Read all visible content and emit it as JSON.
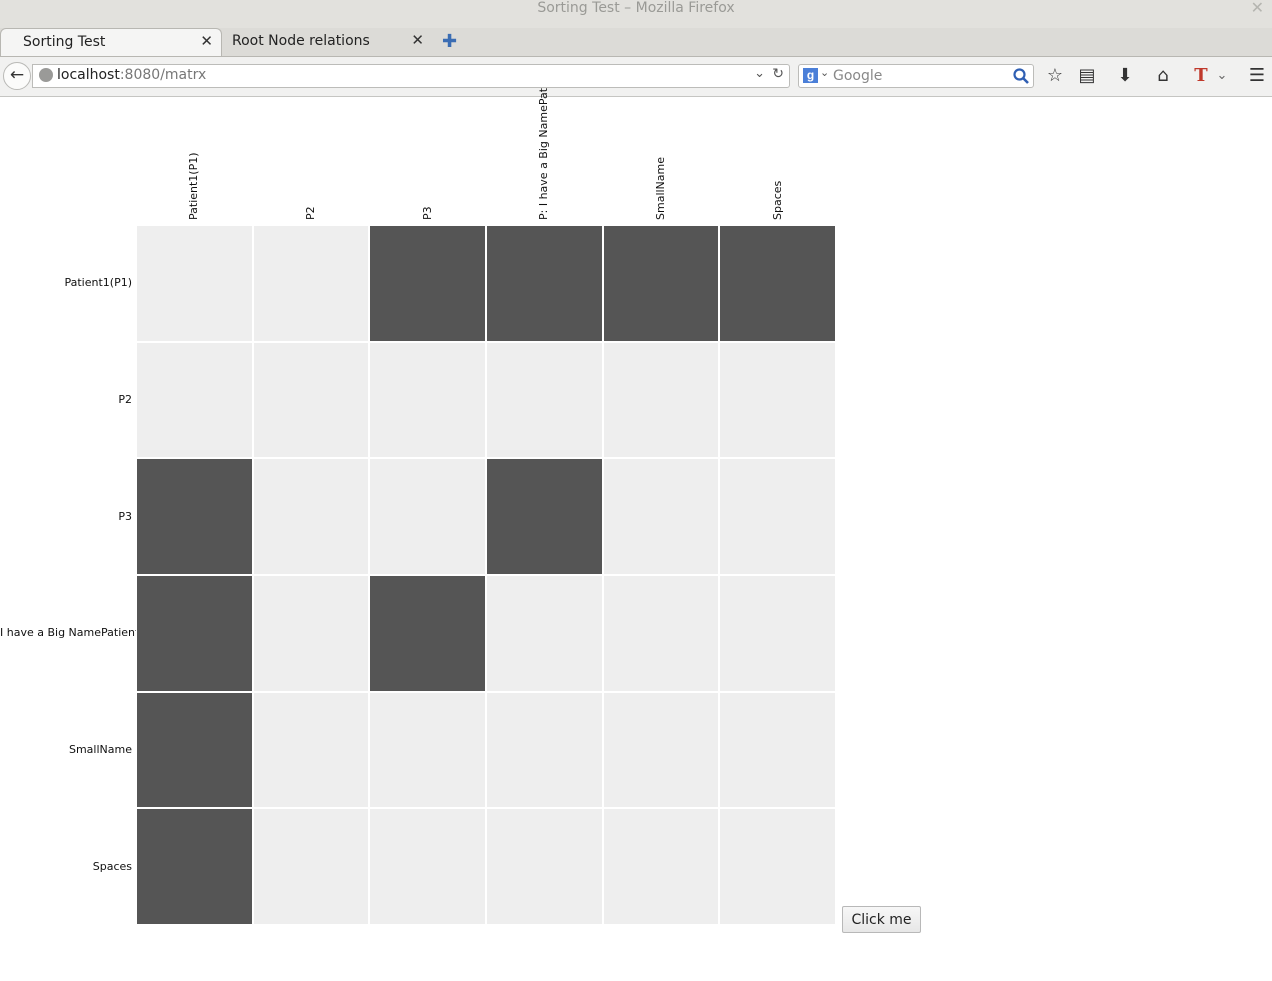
{
  "window": {
    "title": "Sorting Test – Mozilla Firefox"
  },
  "tabs": [
    {
      "label": "Sorting Test"
    },
    {
      "label": "Root Node relations"
    }
  ],
  "navbar": {
    "url_host": "localhost",
    "url_path": ":8080/matrx",
    "search_placeholder": "Google",
    "search_engine_icon": "google-g-icon"
  },
  "matrix": {
    "colors": {
      "filled": "#555555",
      "empty": "#eeeeee"
    },
    "column_labels": [
      "Patient1(P1)",
      "P2",
      "P3",
      "P: I have a Big NamePat",
      "SmallName",
      "Spaces"
    ],
    "row_labels": [
      "Patient1(P1)",
      "P2",
      "P3",
      "I have a Big NamePatient",
      "SmallName",
      "Spaces"
    ],
    "cells": [
      [
        0,
        0,
        1,
        1,
        1,
        1
      ],
      [
        0,
        0,
        0,
        0,
        0,
        0
      ],
      [
        1,
        0,
        0,
        1,
        0,
        0
      ],
      [
        1,
        0,
        1,
        0,
        0,
        0
      ],
      [
        1,
        0,
        0,
        0,
        0,
        0
      ],
      [
        1,
        0,
        0,
        0,
        0,
        0
      ]
    ]
  },
  "button": {
    "label": "Click me"
  }
}
